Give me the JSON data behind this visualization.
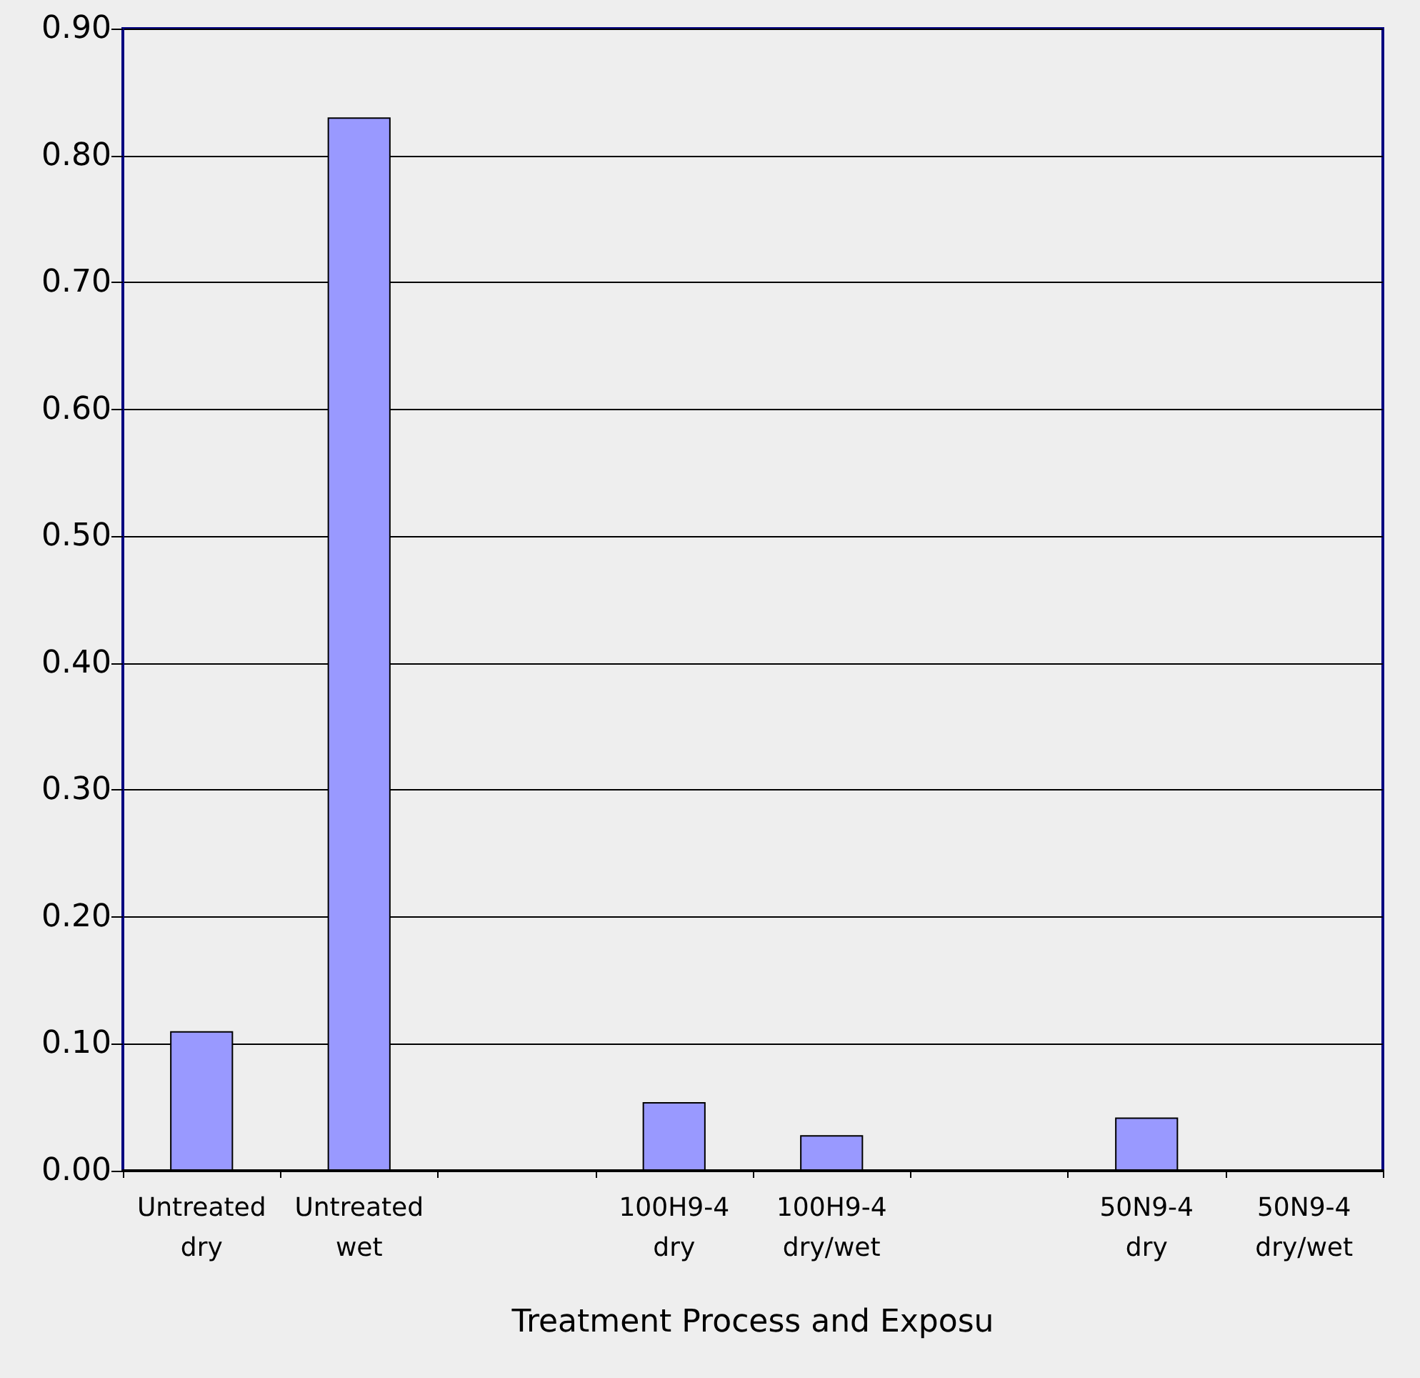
{
  "chart_data": {
    "type": "bar",
    "xlabel": "Treatment Process and Exposu",
    "categories": [
      "Untreated\ndry",
      "Untreated\nwet",
      null,
      "100H9-4\ndry",
      "100H9-4\ndry/wet",
      null,
      "50N9-4\ndry",
      "50N9-4\ndry/wet"
    ],
    "values": [
      0.11,
      0.83,
      null,
      0.054,
      0.028,
      null,
      0.042,
      null
    ],
    "color": "#9999ff",
    "ylim": [
      0,
      0.9
    ],
    "yticks": [
      {
        "value": 0,
        "label": "0.00"
      },
      {
        "value": 0.1,
        "label": "0.10"
      },
      {
        "value": 0.2,
        "label": "0.20"
      },
      {
        "value": 0.3,
        "label": "0.30"
      },
      {
        "value": 0.4,
        "label": "0.40"
      },
      {
        "value": 0.5,
        "label": "0.50"
      },
      {
        "value": 0.6,
        "label": "0.60"
      },
      {
        "value": 0.7,
        "label": "0.70"
      },
      {
        "value": 0.8,
        "label": "0.80"
      },
      {
        "value": 0.9,
        "label": "0.90"
      }
    ],
    "grid": "y"
  }
}
